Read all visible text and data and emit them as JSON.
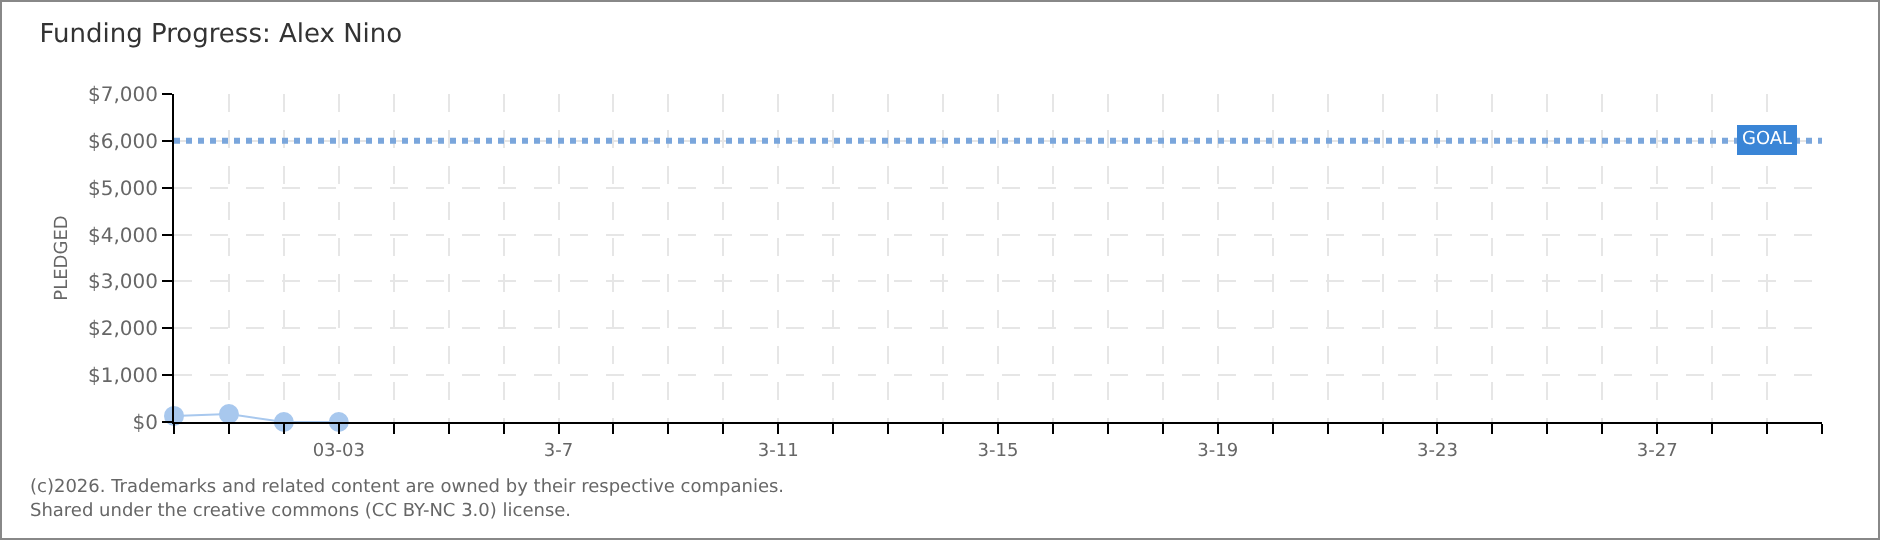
{
  "chart_data": {
    "type": "line",
    "title": "Funding Progress: Alex Nino",
    "ylabel": "PLEDGED",
    "x": [
      "2026-02-28",
      "2026-03-01",
      "2026-03-02",
      "2026-03-03"
    ],
    "series": [
      {
        "color": "#a8c8ee",
        "values": [
          130,
          170,
          0,
          0
        ]
      }
    ],
    "xlim": [
      "2026-02-28",
      "2026-03-30"
    ],
    "xticks": [
      {
        "value": "2026-02-28",
        "label": null
      },
      {
        "value": "2026-03-01",
        "label": null
      },
      {
        "value": "2026-03-02",
        "label": null
      },
      {
        "value": "2026-03-03",
        "label": "03-03"
      },
      {
        "value": "2026-03-04",
        "label": null
      },
      {
        "value": "2026-03-05",
        "label": null
      },
      {
        "value": "2026-03-06",
        "label": null
      },
      {
        "value": "2026-03-07",
        "label": "3-7"
      },
      {
        "value": "2026-03-08",
        "label": null
      },
      {
        "value": "2026-03-09",
        "label": null
      },
      {
        "value": "2026-03-10",
        "label": null
      },
      {
        "value": "2026-03-11",
        "label": "3-11"
      },
      {
        "value": "2026-03-12",
        "label": null
      },
      {
        "value": "2026-03-13",
        "label": null
      },
      {
        "value": "2026-03-14",
        "label": null
      },
      {
        "value": "2026-03-15",
        "label": "3-15"
      },
      {
        "value": "2026-03-16",
        "label": null
      },
      {
        "value": "2026-03-17",
        "label": null
      },
      {
        "value": "2026-03-18",
        "label": null
      },
      {
        "value": "2026-03-19",
        "label": "3-19"
      },
      {
        "value": "2026-03-20",
        "label": null
      },
      {
        "value": "2026-03-21",
        "label": null
      },
      {
        "value": "2026-03-22",
        "label": null
      },
      {
        "value": "2026-03-23",
        "label": "3-23"
      },
      {
        "value": "2026-03-24",
        "label": null
      },
      {
        "value": "2026-03-25",
        "label": null
      },
      {
        "value": "2026-03-26",
        "label": null
      },
      {
        "value": "2026-03-27",
        "label": "3-27"
      },
      {
        "value": "2026-03-28",
        "label": null
      },
      {
        "value": "2026-03-29",
        "label": null
      },
      {
        "value": "2026-03-30",
        "label": null
      }
    ],
    "ylim": [
      0,
      7000
    ],
    "yticks": [
      {
        "value": 0,
        "label": "$0"
      },
      {
        "value": 1000,
        "label": "$1,000"
      },
      {
        "value": 2000,
        "label": "$2,000"
      },
      {
        "value": 3000,
        "label": "$3,000"
      },
      {
        "value": 4000,
        "label": "$4,000"
      },
      {
        "value": 5000,
        "label": "$5,000"
      },
      {
        "value": 6000,
        "label": "$6,000"
      },
      {
        "value": 7000,
        "label": "$7,000"
      }
    ],
    "grid": true,
    "marker": "circle",
    "ref_lines": [
      {
        "axis": "y",
        "value": 6000,
        "label": "GOAL",
        "color": "#7aa6dc",
        "line_style": "dotted"
      }
    ],
    "annotations": [
      "(c)2026. Trademarks and related content are owned by their respective companies.",
      "Shared under the creative commons (CC BY-NC 3.0) license."
    ]
  }
}
